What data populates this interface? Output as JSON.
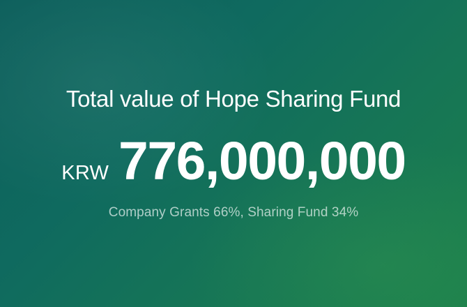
{
  "colors": {
    "background_start": "#0d5f5c",
    "background_end": "#1b7f4c",
    "text_primary": "#ffffff",
    "text_secondary": "#b9d3c9"
  },
  "fund": {
    "title": "Total value of Hope Sharing Fund",
    "currency": "KRW",
    "amount": "776,000,000",
    "breakdown": "Company Grants 66%, Sharing Fund 34%"
  }
}
